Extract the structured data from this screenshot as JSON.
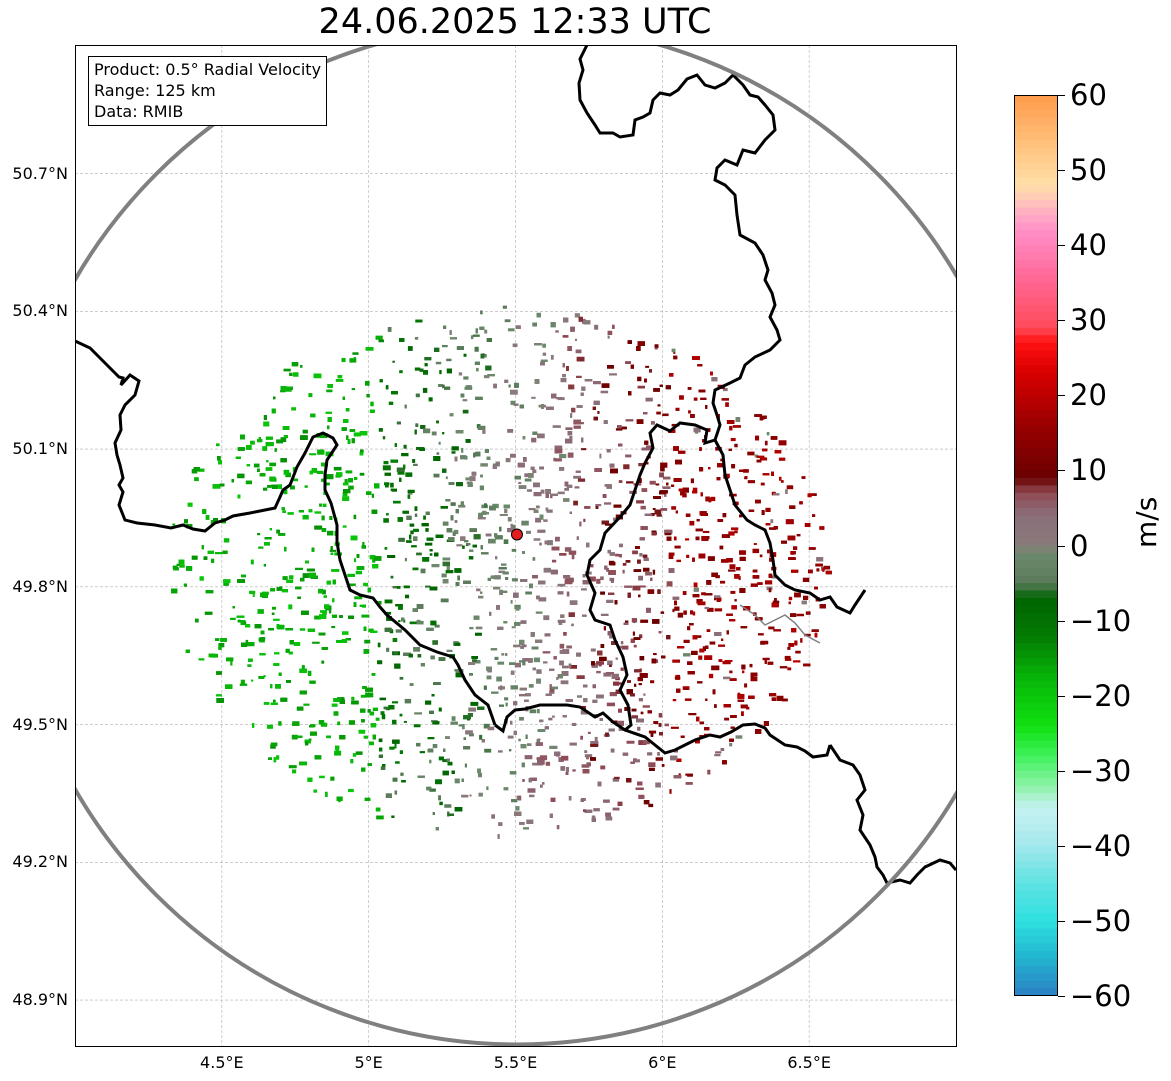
{
  "title": "24.06.2025 12:33 UTC",
  "info_box": {
    "product": "Product: 0.5° Radial Velocity",
    "range": "Range: 125 km",
    "data_source": "Data: RMIB"
  },
  "map": {
    "lon_range": [
      4.0,
      7.0
    ],
    "lat_range": [
      48.8,
      50.98
    ],
    "radar_site": {
      "lon": 5.505,
      "lat": 49.914
    },
    "range_ring_color": "#808080",
    "border_color": "#000000",
    "lat_ticks": [
      {
        "value": 50.7,
        "label": "50.7°N"
      },
      {
        "value": 50.4,
        "label": "50.4°N"
      },
      {
        "value": 50.1,
        "label": "50.1°N"
      },
      {
        "value": 49.8,
        "label": "49.8°N"
      },
      {
        "value": 49.5,
        "label": "49.5°N"
      },
      {
        "value": 49.2,
        "label": "49.2°N"
      },
      {
        "value": 48.9,
        "label": "48.9°N"
      }
    ],
    "lon_ticks": [
      {
        "value": 4.5,
        "label": "4.5°E"
      },
      {
        "value": 5.0,
        "label": "5°E"
      },
      {
        "value": 5.5,
        "label": "5.5°E"
      },
      {
        "value": 6.0,
        "label": "6°E"
      },
      {
        "value": 6.5,
        "label": "6.5°E"
      }
    ]
  },
  "colorbar": {
    "unit": "m/s",
    "min": -60,
    "max": 60,
    "ticks": [
      {
        "value": 60,
        "label": "60"
      },
      {
        "value": 50,
        "label": "50"
      },
      {
        "value": 40,
        "label": "40"
      },
      {
        "value": 30,
        "label": "30"
      },
      {
        "value": 20,
        "label": "20"
      },
      {
        "value": 10,
        "label": "10"
      },
      {
        "value": 0,
        "label": "0"
      },
      {
        "value": -10,
        "label": "−10"
      },
      {
        "value": -20,
        "label": "−20"
      },
      {
        "value": -30,
        "label": "−30"
      },
      {
        "value": -40,
        "label": "−40"
      },
      {
        "value": -50,
        "label": "−50"
      },
      {
        "value": -60,
        "label": "−60"
      }
    ],
    "stops": [
      {
        "value": -60,
        "color": "#2b7fc4"
      },
      {
        "value": -55,
        "color": "#22b3cf"
      },
      {
        "value": -50,
        "color": "#2ee0e0"
      },
      {
        "value": -45,
        "color": "#5fe2e2"
      },
      {
        "value": -40,
        "color": "#a3e8ec"
      },
      {
        "value": -35,
        "color": "#c6f2f2"
      },
      {
        "value": -32,
        "color": "#8cf2a6"
      },
      {
        "value": -28,
        "color": "#3ef25a"
      },
      {
        "value": -24,
        "color": "#10e010"
      },
      {
        "value": -18,
        "color": "#08b808"
      },
      {
        "value": -12,
        "color": "#037a03"
      },
      {
        "value": -7,
        "color": "#006400"
      },
      {
        "value": -5,
        "color": "#5a7a5a"
      },
      {
        "value": -1,
        "color": "#6e8a6e"
      },
      {
        "value": 0,
        "color": "#8a7a7a"
      },
      {
        "value": 4,
        "color": "#8a6e7a"
      },
      {
        "value": 7,
        "color": "#904a54"
      },
      {
        "value": 9,
        "color": "#6a0000"
      },
      {
        "value": 16,
        "color": "#9a0000"
      },
      {
        "value": 23,
        "color": "#d80000"
      },
      {
        "value": 27,
        "color": "#ff1010"
      },
      {
        "value": 29,
        "color": "#ff4a5a"
      },
      {
        "value": 36,
        "color": "#ff6a9a"
      },
      {
        "value": 42,
        "color": "#ff90c8"
      },
      {
        "value": 45,
        "color": "#ffb8c0"
      },
      {
        "value": 48,
        "color": "#ffe0a8"
      },
      {
        "value": 55,
        "color": "#ffb870"
      },
      {
        "value": 60,
        "color": "#ff9a4a"
      }
    ]
  }
}
